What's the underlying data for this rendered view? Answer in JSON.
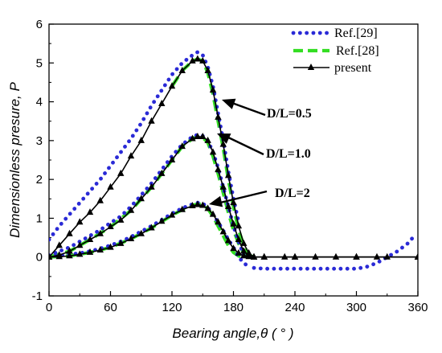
{
  "chart_data": {
    "type": "line",
    "xlabel": "Bearing angle,θ ( ° )",
    "ylabel": "Dimensionless presure, P",
    "xlim": [
      0,
      360
    ],
    "ylim": [
      -1,
      6
    ],
    "x_ticks": [
      0,
      60,
      120,
      180,
      240,
      300,
      360
    ],
    "y_ticks": [
      -1,
      0,
      1,
      2,
      3,
      4,
      5,
      6
    ],
    "grid": false,
    "legend_position": "top-right",
    "legend": [
      {
        "label": "Ref.[29]",
        "style": "dotted",
        "color": "#2a2ad6"
      },
      {
        "label": "Ref.[28]",
        "style": "dashed",
        "color": "#33dd22"
      },
      {
        "label": "present",
        "style": "solid-triangle",
        "color": "#000000"
      }
    ],
    "annotations": [
      {
        "text": "D/L=0.5",
        "points_to": {
          "x": 153,
          "y": 4.8
        }
      },
      {
        "text": "D/L=1.0",
        "points_to": {
          "x": 155,
          "y": 2.9
        }
      },
      {
        "text": "D/L=2",
        "points_to": {
          "x": 158,
          "y": 1.25
        }
      }
    ],
    "series": [
      {
        "group": "D/L=0.5",
        "source": "present",
        "x": [
          0,
          10,
          20,
          30,
          40,
          50,
          60,
          70,
          80,
          90,
          100,
          110,
          120,
          130,
          140,
          145,
          150,
          155,
          160,
          165,
          170,
          175,
          180,
          185,
          190,
          195,
          200,
          210,
          230,
          260,
          300,
          330,
          360
        ],
        "y": [
          0,
          0.3,
          0.6,
          0.9,
          1.15,
          1.45,
          1.8,
          2.15,
          2.6,
          3.0,
          3.5,
          3.95,
          4.4,
          4.8,
          5.05,
          5.1,
          5.05,
          4.8,
          4.3,
          3.6,
          2.9,
          2.1,
          1.4,
          0.8,
          0.35,
          0.1,
          0,
          0,
          0,
          0,
          0,
          0,
          0
        ]
      },
      {
        "group": "D/L=1.0",
        "source": "present",
        "x": [
          0,
          10,
          20,
          30,
          40,
          50,
          60,
          70,
          80,
          90,
          100,
          110,
          120,
          130,
          140,
          145,
          150,
          155,
          160,
          165,
          170,
          175,
          180,
          185,
          190,
          195,
          200,
          210,
          240,
          280,
          320,
          360
        ],
        "y": [
          0,
          0.05,
          0.15,
          0.3,
          0.45,
          0.6,
          0.78,
          0.95,
          1.2,
          1.5,
          1.8,
          2.15,
          2.5,
          2.85,
          3.05,
          3.1,
          3.1,
          3.0,
          2.7,
          2.25,
          1.8,
          1.3,
          0.85,
          0.45,
          0.15,
          0.03,
          0,
          0,
          0,
          0,
          0,
          0
        ]
      },
      {
        "group": "D/L=2",
        "source": "present",
        "x": [
          0,
          10,
          20,
          30,
          40,
          50,
          60,
          70,
          80,
          90,
          100,
          110,
          120,
          130,
          140,
          145,
          150,
          155,
          160,
          165,
          170,
          175,
          180,
          185,
          190,
          195,
          200,
          240,
          300,
          360
        ],
        "y": [
          0,
          0.01,
          0.03,
          0.07,
          0.12,
          0.18,
          0.25,
          0.35,
          0.47,
          0.6,
          0.75,
          0.92,
          1.08,
          1.22,
          1.32,
          1.35,
          1.33,
          1.25,
          1.1,
          0.9,
          0.65,
          0.42,
          0.22,
          0.1,
          0.03,
          0.01,
          0,
          0,
          0,
          0
        ]
      },
      {
        "group": "D/L=0.5",
        "source": "Ref.[29]",
        "x": [
          0,
          10,
          20,
          30,
          40,
          50,
          60,
          70,
          80,
          90,
          100,
          110,
          120,
          130,
          140,
          145,
          150,
          155,
          160,
          165,
          170,
          175,
          180,
          185
        ],
        "y": [
          0.45,
          0.8,
          1.1,
          1.4,
          1.7,
          2.0,
          2.35,
          2.7,
          3.05,
          3.45,
          3.9,
          4.3,
          4.7,
          5.0,
          5.2,
          5.28,
          5.2,
          4.9,
          4.4,
          3.7,
          3.0,
          2.2,
          1.5,
          0.9
        ]
      },
      {
        "group": "D/L=1.0",
        "source": "Ref.[29]",
        "x": [
          0,
          10,
          20,
          30,
          40,
          50,
          60,
          70,
          80,
          90,
          100,
          110,
          120,
          130,
          140,
          145,
          150,
          155,
          160,
          165,
          170,
          175,
          180,
          185,
          190
        ],
        "y": [
          0.05,
          0.15,
          0.25,
          0.4,
          0.55,
          0.7,
          0.88,
          1.05,
          1.3,
          1.6,
          1.9,
          2.25,
          2.6,
          2.9,
          3.1,
          3.15,
          3.12,
          3.0,
          2.7,
          2.3,
          1.8,
          1.3,
          0.8,
          0.4,
          0.05
        ]
      },
      {
        "group": "D/L=2",
        "source": "Ref.[29]",
        "x": [
          0,
          10,
          20,
          30,
          40,
          50,
          60,
          70,
          80,
          90,
          100,
          110,
          120,
          130,
          140,
          145,
          150,
          155,
          160,
          165,
          170,
          175,
          180,
          185,
          190,
          195
        ],
        "y": [
          0.02,
          0.04,
          0.07,
          0.1,
          0.15,
          0.22,
          0.3,
          0.4,
          0.52,
          0.66,
          0.8,
          0.96,
          1.12,
          1.26,
          1.36,
          1.4,
          1.38,
          1.28,
          1.1,
          0.9,
          0.68,
          0.45,
          0.25,
          0.0,
          -0.15,
          -0.25
        ]
      },
      {
        "group": "tail",
        "source": "Ref.[29]",
        "x": [
          200,
          210,
          220,
          230,
          240,
          250,
          260,
          270,
          280,
          290,
          300,
          310,
          320,
          330,
          340,
          350,
          355
        ],
        "y": [
          -0.28,
          -0.3,
          -0.3,
          -0.3,
          -0.3,
          -0.3,
          -0.3,
          -0.3,
          -0.3,
          -0.3,
          -0.3,
          -0.25,
          -0.15,
          0.0,
          0.15,
          0.35,
          0.5
        ]
      },
      {
        "group": "D/L=0.5",
        "source": "Ref.[28]",
        "x": [
          120,
          130,
          140,
          145,
          150,
          155,
          160,
          165,
          170,
          175,
          180,
          185,
          190,
          195,
          200
        ],
        "y": [
          4.4,
          4.8,
          5.05,
          5.1,
          5.05,
          4.75,
          4.2,
          3.5,
          2.8,
          2.0,
          1.3,
          0.7,
          0.3,
          0.05,
          0
        ]
      },
      {
        "group": "D/L=1.0",
        "source": "Ref.[28]",
        "x": [
          0,
          20,
          40,
          60,
          80,
          100,
          120,
          130,
          140,
          145,
          150,
          155,
          160,
          165,
          170,
          175,
          180,
          185,
          190,
          195
        ],
        "y": [
          0,
          0.15,
          0.45,
          0.78,
          1.2,
          1.8,
          2.5,
          2.85,
          3.05,
          3.1,
          3.08,
          2.95,
          2.6,
          2.15,
          1.65,
          1.15,
          0.7,
          0.35,
          0.1,
          0
        ]
      },
      {
        "group": "D/L=2",
        "source": "Ref.[28]",
        "x": [
          0,
          20,
          40,
          60,
          80,
          100,
          120,
          130,
          140,
          145,
          150,
          155,
          160,
          165,
          170,
          175,
          180,
          185,
          190
        ],
        "y": [
          0,
          0.03,
          0.12,
          0.25,
          0.47,
          0.75,
          1.08,
          1.22,
          1.33,
          1.37,
          1.35,
          1.25,
          1.05,
          0.8,
          0.55,
          0.3,
          0.12,
          0.03,
          0
        ]
      }
    ]
  }
}
